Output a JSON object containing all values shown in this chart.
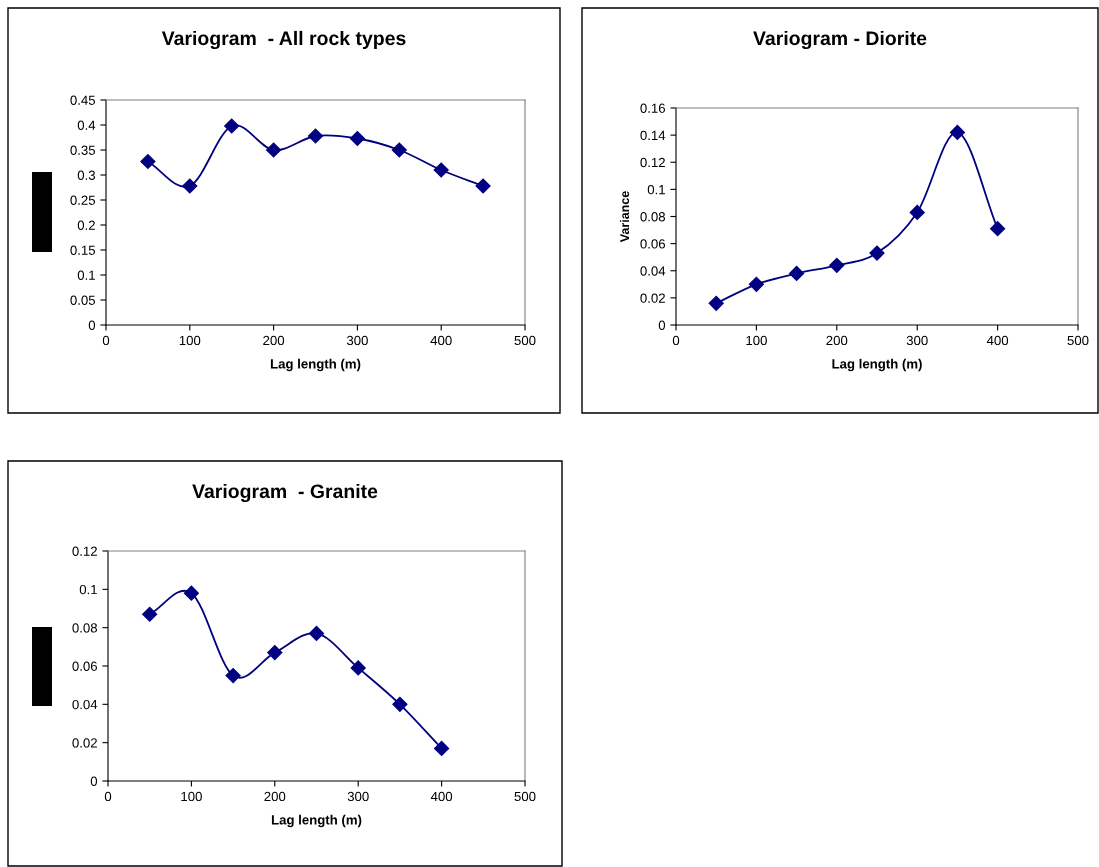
{
  "chart_data": [
    {
      "type": "line",
      "title": "Variogram  - All rock types",
      "xlabel": "Lag length (m)",
      "x": [
        50,
        100,
        150,
        200,
        250,
        300,
        350,
        400,
        450
      ],
      "series": [
        {
          "color": "#000080",
          "values": [
            0.327,
            0.278,
            0.398,
            0.35,
            0.378,
            0.373,
            0.35,
            0.31,
            0.278
          ]
        }
      ],
      "xlim": [
        0,
        500
      ],
      "xticks": [
        0,
        100,
        200,
        300,
        400,
        500
      ],
      "ylim": [
        0,
        0.45
      ],
      "yticks": [
        0,
        0.05,
        0.1,
        0.15,
        0.2,
        0.25,
        0.3,
        0.35,
        0.4,
        0.45
      ],
      "grid": false,
      "legend": false,
      "marker": "diamond",
      "line_style": "solid"
    },
    {
      "type": "line",
      "title": "Variogram - Diorite",
      "xlabel": "Lag length (m)",
      "ylabel": "Variance",
      "x": [
        50,
        100,
        150,
        200,
        250,
        300,
        350,
        400
      ],
      "series": [
        {
          "color": "#000080",
          "values": [
            0.016,
            0.03,
            0.038,
            0.044,
            0.053,
            0.083,
            0.142,
            0.071
          ]
        }
      ],
      "xlim": [
        0,
        500
      ],
      "xticks": [
        0,
        100,
        200,
        300,
        400,
        500
      ],
      "ylim": [
        0,
        0.16
      ],
      "yticks": [
        0,
        0.02,
        0.04,
        0.06,
        0.08,
        0.1,
        0.12,
        0.14,
        0.16
      ],
      "grid": false,
      "legend": false,
      "marker": "diamond",
      "line_style": "solid"
    },
    {
      "type": "line",
      "title": "Variogram  - Granite",
      "xlabel": "Lag length (m)",
      "x": [
        50,
        100,
        150,
        200,
        250,
        300,
        350,
        400
      ],
      "series": [
        {
          "color": "#000080",
          "values": [
            0.087,
            0.098,
            0.055,
            0.067,
            0.077,
            0.059,
            0.04,
            0.017
          ]
        }
      ],
      "xlim": [
        0,
        500
      ],
      "xticks": [
        0,
        100,
        200,
        300,
        400,
        500
      ],
      "ylim": [
        0,
        0.12
      ],
      "yticks": [
        0,
        0.02,
        0.04,
        0.06,
        0.08,
        0.1,
        0.12
      ],
      "grid": false,
      "legend": false,
      "marker": "diamond",
      "line_style": "solid"
    }
  ]
}
